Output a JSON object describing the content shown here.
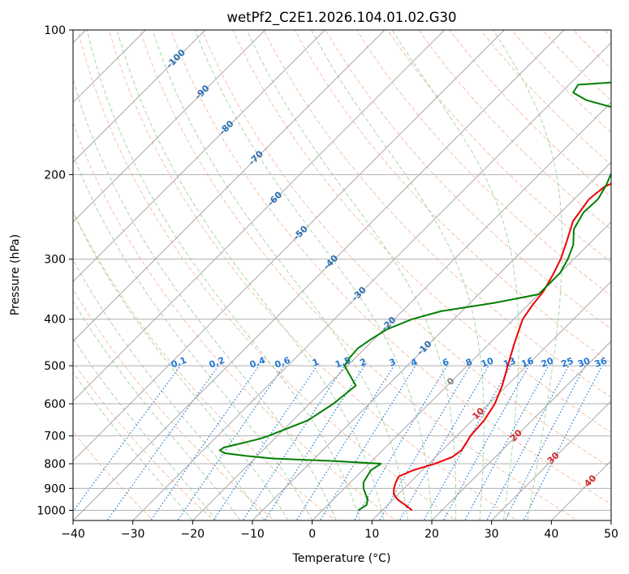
{
  "chart_data": {
    "type": "line",
    "title": "wetPf2_C2E1.2026.104.01.02.G30",
    "xlabel": "Temperature (°C)",
    "ylabel": "Pressure (hPa)",
    "xlim": [
      -40,
      50
    ],
    "ylim": [
      1050,
      100
    ],
    "y_scale": "log",
    "grid": true,
    "x_ticks": [
      "−40",
      "−30",
      "−20",
      "−10",
      "0",
      "10",
      "20",
      "30",
      "40",
      "50"
    ],
    "y_ticks": [
      "100",
      "200",
      "300",
      "400",
      "500",
      "600",
      "700",
      "800",
      "900",
      "1000"
    ],
    "series": [
      {
        "color": "#ee0000",
        "pressure": [
          1000,
          975,
          950,
          925,
          900,
          875,
          850,
          825,
          800,
          775,
          750,
          725,
          700,
          650,
          600,
          550,
          500,
          450,
          400,
          375,
          350,
          325,
          300,
          275,
          250,
          225,
          212,
          200,
          187,
          175,
          162,
          150,
          137,
          125,
          112,
          100
        ],
        "temperature": [
          15.0,
          13.0,
          10.8,
          9.2,
          8.3,
          7.6,
          7.1,
          8.5,
          11.0,
          12.8,
          13.2,
          12.8,
          12.3,
          12.0,
          11.0,
          9.2,
          6.8,
          4.2,
          1.5,
          0.8,
          0.3,
          -0.8,
          -2.2,
          -4.2,
          -6.5,
          -7.5,
          -7.0,
          -4.5,
          -3.5,
          0.0,
          6.5,
          11.5,
          12.0,
          11.5,
          12.0,
          14.0
        ]
      },
      {
        "color": "#007f00",
        "pressure": [
          1000,
          975,
          950,
          925,
          900,
          875,
          850,
          825,
          800,
          790,
          780,
          770,
          760,
          750,
          740,
          730,
          720,
          710,
          700,
          650,
          600,
          550,
          500,
          480,
          460,
          440,
          420,
          400,
          385,
          370,
          355,
          340,
          320,
          300,
          280,
          260,
          240,
          225,
          210,
          200,
          190,
          180,
          170,
          162,
          155,
          148,
          140,
          135,
          130,
          125,
          120,
          112,
          105,
          100
        ],
        "dewpoint": [
          6.0,
          6.5,
          5.8,
          4.5,
          3.2,
          2.2,
          1.8,
          1.4,
          2.0,
          -6.0,
          -17.0,
          -22.0,
          -26.0,
          -27.2,
          -27.0,
          -25.5,
          -24.0,
          -22.5,
          -21.5,
          -17.5,
          -16.0,
          -15.3,
          -20.5,
          -21.0,
          -21.2,
          -20.5,
          -19.5,
          -17.0,
          -13.5,
          -6.0,
          0.0,
          0.0,
          0.0,
          -1.0,
          -2.5,
          -5.0,
          -6.2,
          -6.0,
          -7.0,
          -8.0,
          -8.5,
          -8.0,
          -8.5,
          -9.5,
          -11.0,
          -15.5,
          -24.5,
          -28.0,
          -28.5,
          -10.0,
          -7.0,
          -4.0,
          -1.5,
          0.0
        ]
      }
    ],
    "dry_adiabat_color": "#f4a582",
    "moist_adiabat_color": "#96c896",
    "isotherm_label_color": "#2c6fb0",
    "isotherm_labels": [
      {
        "text": "-100",
        "t": -100
      },
      {
        "text": "-90",
        "t": -90
      },
      {
        "text": "-80",
        "t": -80
      },
      {
        "text": "-70",
        "t": -70
      },
      {
        "text": "-60",
        "t": -60
      },
      {
        "text": "-50",
        "t": -50
      },
      {
        "text": "-40",
        "t": -40
      },
      {
        "text": "-30",
        "t": -30
      },
      {
        "text": "-20",
        "t": -20
      },
      {
        "text": "-10",
        "t": -10
      }
    ],
    "warm_isotherm_labels": [
      {
        "text": "0",
        "t": 0,
        "color": "#808080"
      },
      {
        "text": "10",
        "t": 10,
        "color": "#d62728"
      },
      {
        "text": "20",
        "t": 20,
        "color": "#d62728"
      },
      {
        "text": "30",
        "t": 30,
        "color": "#d62728"
      },
      {
        "text": "40",
        "t": 40,
        "color": "#d62728"
      }
    ],
    "mixing_ratio_color": "#1f77d4",
    "mixing_ratio_labels": [
      "0.1",
      "0.2",
      "0.4",
      "0.6",
      "1",
      "1.5",
      "2",
      "3",
      "4",
      "6",
      "8",
      "10",
      "13",
      "16",
      "20",
      "25",
      "30",
      "36"
    ],
    "mixing_ratio_values": [
      0.1,
      0.2,
      0.4,
      0.6,
      1,
      1.5,
      2,
      3,
      4,
      6,
      8,
      10,
      13,
      16,
      20,
      25,
      30,
      36
    ]
  }
}
